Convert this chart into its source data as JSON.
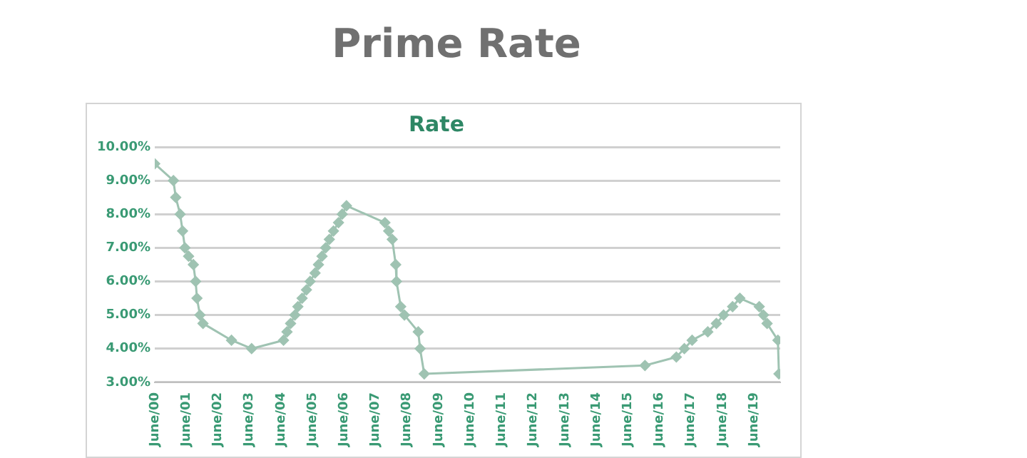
{
  "chart_data": {
    "type": "line",
    "title": "Prime Rate",
    "subtitle": "Rate",
    "x": [
      "2000-06-01",
      "2001-01-04",
      "2001-02-01",
      "2001-03-21",
      "2001-04-19",
      "2001-05-16",
      "2001-06-28",
      "2001-08-22",
      "2001-09-18",
      "2001-10-03",
      "2001-11-07",
      "2001-12-12",
      "2002-11-07",
      "2003-06-27",
      "2004-07-01",
      "2004-08-11",
      "2004-09-22",
      "2004-11-11",
      "2004-12-15",
      "2005-02-03",
      "2005-03-23",
      "2005-05-04",
      "2005-07-01",
      "2005-08-10",
      "2005-09-21",
      "2005-11-02",
      "2005-12-14",
      "2006-02-01",
      "2006-03-29",
      "2006-05-11",
      "2006-06-30",
      "2007-09-19",
      "2007-11-01",
      "2007-12-12",
      "2008-01-22",
      "2008-01-31",
      "2008-03-19",
      "2008-05-01",
      "2008-10-09",
      "2008-10-30",
      "2008-12-17",
      "2015-12-17",
      "2016-12-15",
      "2017-03-16",
      "2017-06-15",
      "2017-12-14",
      "2018-03-22",
      "2018-06-14",
      "2018-09-27",
      "2018-12-20",
      "2019-08-01",
      "2019-09-19",
      "2019-10-31",
      "2020-03-04",
      "2020-03-16"
    ],
    "series": [
      {
        "color": "#9fc3b2",
        "values": [
          9.5,
          9.0,
          8.5,
          8.0,
          7.5,
          7.0,
          6.75,
          6.5,
          6.0,
          5.5,
          5.0,
          4.75,
          4.25,
          4.0,
          4.25,
          4.5,
          4.75,
          5.0,
          5.25,
          5.5,
          5.75,
          6.0,
          6.25,
          6.5,
          6.75,
          7.0,
          7.25,
          7.5,
          7.75,
          8.0,
          8.25,
          7.75,
          7.5,
          7.25,
          6.5,
          6.0,
          5.25,
          5.0,
          4.5,
          4.0,
          3.25,
          3.5,
          3.75,
          4.0,
          4.25,
          4.5,
          4.75,
          5.0,
          5.25,
          5.5,
          5.25,
          5.0,
          4.75,
          4.25,
          3.25
        ]
      }
    ],
    "xlim": [
      "2000-06-01",
      "2020-03-31"
    ],
    "xticks": [
      {
        "value": "2000-06-01",
        "label": "June/00"
      },
      {
        "value": "2001-06-01",
        "label": "June/01"
      },
      {
        "value": "2002-06-01",
        "label": "June/02"
      },
      {
        "value": "2003-06-01",
        "label": "June/03"
      },
      {
        "value": "2004-06-01",
        "label": "June/04"
      },
      {
        "value": "2005-06-01",
        "label": "June/05"
      },
      {
        "value": "2006-06-01",
        "label": "June/06"
      },
      {
        "value": "2007-06-01",
        "label": "June/07"
      },
      {
        "value": "2008-06-01",
        "label": "June/08"
      },
      {
        "value": "2009-06-01",
        "label": "June/09"
      },
      {
        "value": "2010-06-01",
        "label": "June/10"
      },
      {
        "value": "2011-06-01",
        "label": "June/11"
      },
      {
        "value": "2012-06-01",
        "label": "June/12"
      },
      {
        "value": "2013-06-01",
        "label": "June/13"
      },
      {
        "value": "2014-06-01",
        "label": "June/14"
      },
      {
        "value": "2015-06-01",
        "label": "June/15"
      },
      {
        "value": "2016-06-01",
        "label": "June/16"
      },
      {
        "value": "2017-06-01",
        "label": "June/17"
      },
      {
        "value": "2018-06-01",
        "label": "June/18"
      },
      {
        "value": "2019-06-01",
        "label": "June/19"
      }
    ],
    "ylim": [
      3,
      10
    ],
    "yticks": [
      {
        "value": 3,
        "label": "3.00%"
      },
      {
        "value": 4,
        "label": "4.00%"
      },
      {
        "value": 5,
        "label": "5.00%"
      },
      {
        "value": 6,
        "label": "6.00%"
      },
      {
        "value": 7,
        "label": "7.00%"
      },
      {
        "value": 8,
        "label": "8.00%"
      },
      {
        "value": 9,
        "label": "9.00%"
      },
      {
        "value": 10,
        "label": "10.00%"
      }
    ],
    "grid": "y",
    "legend": false,
    "marker": "diamond",
    "line_style": "solid"
  }
}
